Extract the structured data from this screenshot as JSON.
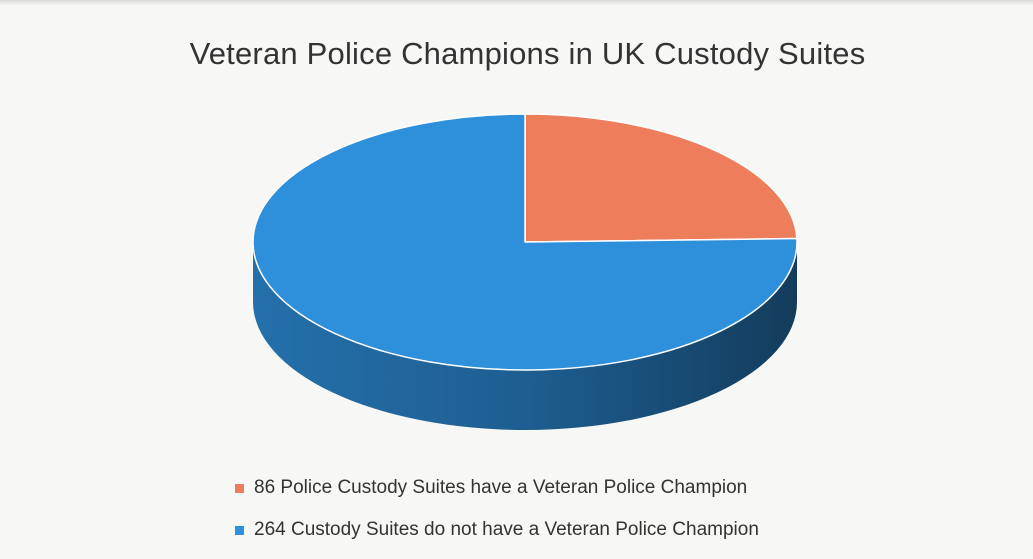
{
  "chart_data": {
    "type": "pie",
    "title": "Veteran Police Champions in UK Custody Suites",
    "slices": [
      {
        "label": "86 Police Custody Suites have a Veteran Police Champion",
        "value": 86,
        "color": "#ED7D5B"
      },
      {
        "label": "264 Custody Suites do not have a Veteran Police Champion",
        "value": 264,
        "color": "#2E8FDB"
      }
    ],
    "legend_position": "bottom",
    "style": "3d"
  }
}
